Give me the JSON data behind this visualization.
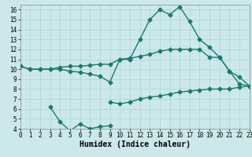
{
  "xlabel": "Humidex (Indice chaleur)",
  "x": [
    0,
    1,
    2,
    3,
    4,
    5,
    6,
    7,
    8,
    9,
    10,
    11,
    12,
    13,
    14,
    15,
    16,
    17,
    18,
    19,
    20,
    21,
    22,
    23
  ],
  "line1": [
    10.3,
    10.0,
    10.0,
    10.0,
    10.2,
    10.3,
    10.3,
    10.4,
    10.5,
    10.5,
    11.0,
    11.1,
    11.3,
    11.5,
    11.8,
    12.0,
    12.0,
    12.0,
    12.0,
    11.2,
    11.2,
    9.8,
    8.5,
    8.3
  ],
  "line2": [
    10.3,
    10.0,
    10.0,
    10.0,
    10.0,
    9.8,
    9.7,
    9.5,
    9.3,
    8.7,
    11.0,
    11.0,
    13.0,
    15.0,
    16.0,
    15.5,
    16.3,
    14.8,
    13.0,
    12.2,
    11.2,
    9.8,
    9.2,
    8.3
  ],
  "line3_x": [
    3,
    4,
    5,
    6,
    7,
    8,
    9
  ],
  "line3_y": [
    6.2,
    4.7,
    3.8,
    4.5,
    4.0,
    4.2,
    4.3
  ],
  "line4_x": [
    9,
    10,
    11,
    12,
    13,
    14,
    15,
    16,
    17,
    18,
    19,
    20,
    21,
    22,
    23
  ],
  "line4_y": [
    6.7,
    6.5,
    6.7,
    7.0,
    7.2,
    7.3,
    7.5,
    7.7,
    7.8,
    7.9,
    8.0,
    8.0,
    8.0,
    8.2,
    8.3
  ],
  "color": "#1a7a6e",
  "bg_color": "#cce8eb",
  "grid_color": "#b0d8dc",
  "xlim": [
    0,
    23
  ],
  "ylim": [
    4,
    16.5
  ],
  "yticks": [
    4,
    5,
    6,
    7,
    8,
    9,
    10,
    11,
    12,
    13,
    14,
    15,
    16
  ],
  "xticks": [
    0,
    1,
    2,
    3,
    4,
    5,
    6,
    7,
    8,
    9,
    10,
    11,
    12,
    13,
    14,
    15,
    16,
    17,
    18,
    19,
    20,
    21,
    22,
    23
  ],
  "markersize": 2.5,
  "linewidth": 1.0
}
